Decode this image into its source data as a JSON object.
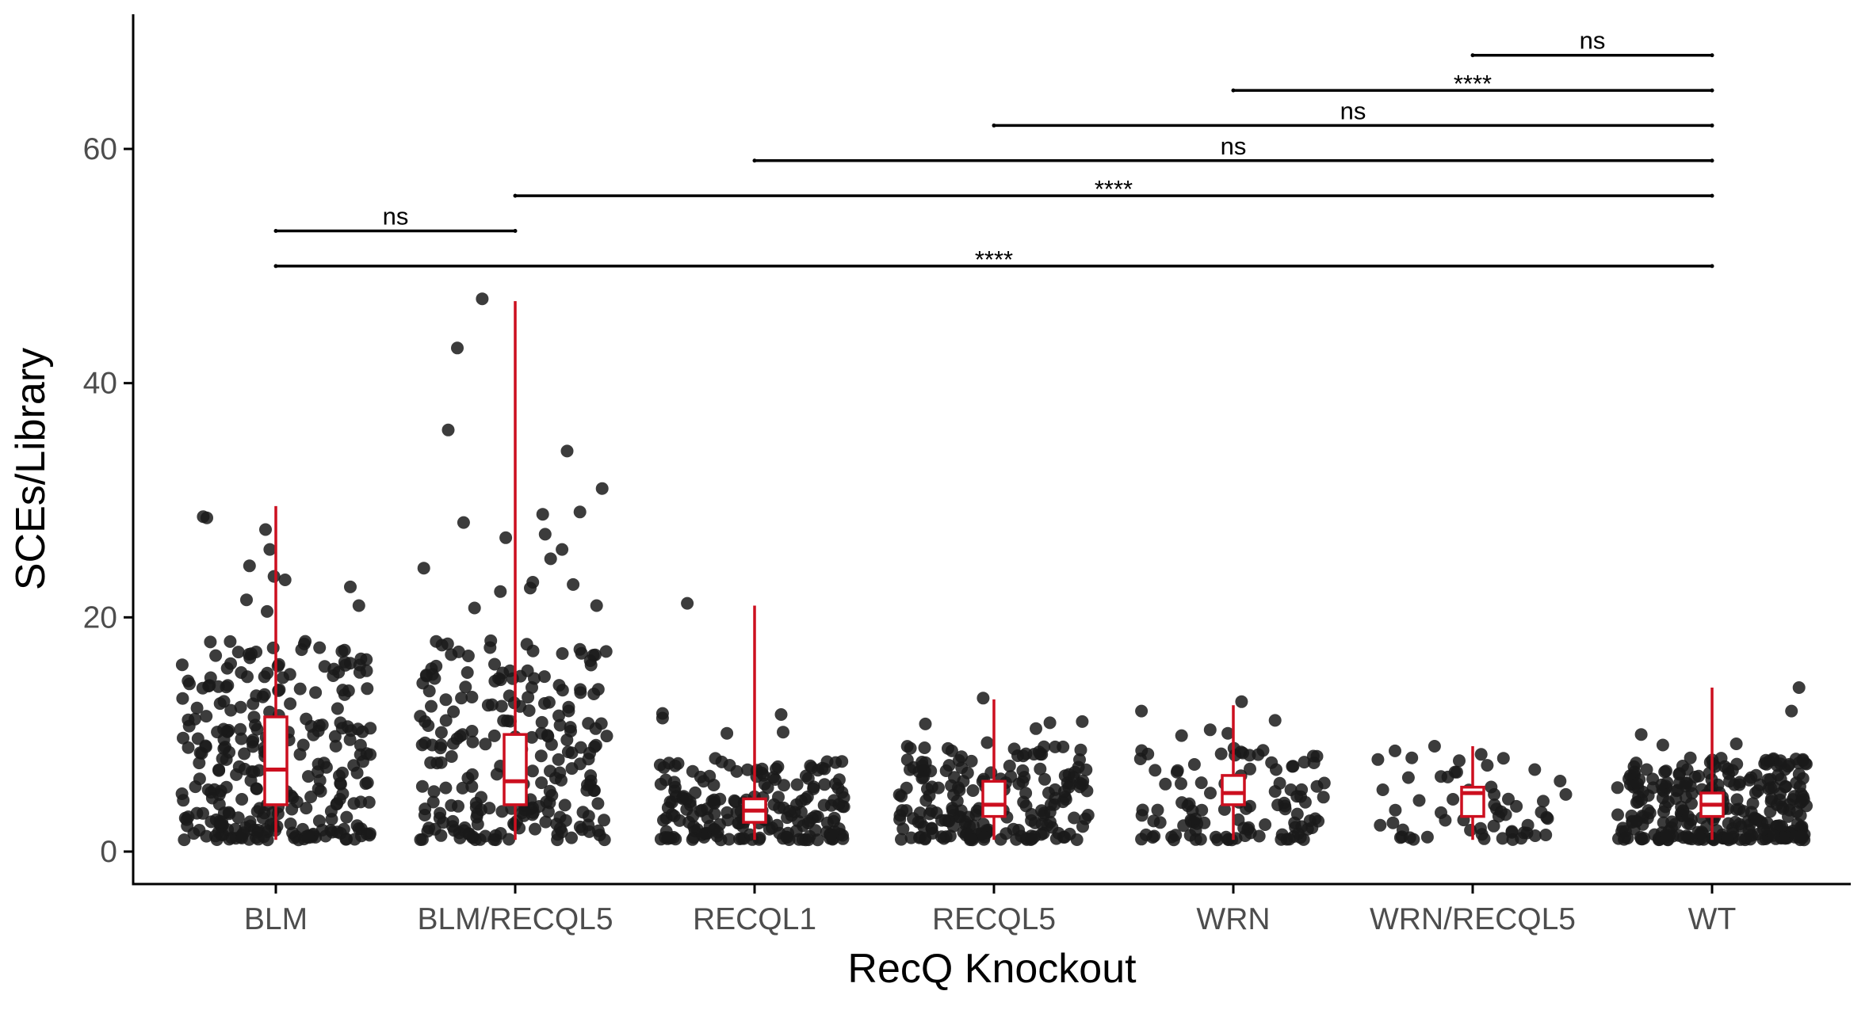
{
  "chart_data": {
    "type": "scatter",
    "subtype": "jitter-with-boxplot",
    "title": "",
    "xlabel": "RecQ Knockout",
    "ylabel": "SCEs/Library",
    "categories": [
      "BLM",
      "BLM/RECQL5",
      "RECQL1",
      "RECQL5",
      "WRN",
      "WRN/RECQL5",
      "WT"
    ],
    "yticks": [
      0,
      20,
      40,
      60
    ],
    "ylim": [
      -3,
      71
    ],
    "grid": false,
    "legend": "none",
    "colors": {
      "points": "#1a1a1a",
      "box": "#cc0f1f",
      "axis": "#000000"
    },
    "boxplots": [
      {
        "group": "BLM",
        "min": 1,
        "q1": 4,
        "median": 7,
        "q3": 11.5,
        "max": 29.5
      },
      {
        "group": "BLM/RECQL5",
        "min": 1,
        "q1": 4,
        "median": 6,
        "q3": 10,
        "max": 47
      },
      {
        "group": "RECQL1",
        "min": 1,
        "q1": 2.5,
        "median": 3.5,
        "q3": 4.5,
        "max": 21
      },
      {
        "group": "RECQL5",
        "min": 1,
        "q1": 3,
        "median": 4,
        "q3": 6,
        "max": 13
      },
      {
        "group": "WRN",
        "min": 1,
        "q1": 4,
        "median": 5,
        "q3": 6.5,
        "max": 12.5
      },
      {
        "group": "WRN/RECQL5",
        "min": 1,
        "q1": 3,
        "median": 5,
        "q3": 5.5,
        "max": 9
      },
      {
        "group": "WT",
        "min": 1,
        "q1": 3,
        "median": 4,
        "q3": 5,
        "max": 14
      }
    ],
    "points": [
      {
        "group": "BLM",
        "n": 300,
        "typical": [
          1,
          18
        ],
        "max_shown": 29.5,
        "notable": [
          27.5,
          28.5,
          28.6,
          25.8,
          24.4,
          23.5,
          23.2,
          22.6,
          21.5,
          21,
          20.5
        ]
      },
      {
        "group": "BLM/RECQL5",
        "n": 250,
        "typical": [
          1,
          18
        ],
        "max_shown": 47.2,
        "notable": [
          47.2,
          43,
          36,
          34.2,
          31,
          29,
          28.8,
          28.1,
          27.1,
          26.8,
          25.8,
          25,
          24.2,
          23,
          22.8,
          22.5,
          22.2,
          21,
          20.8
        ]
      },
      {
        "group": "RECQL1",
        "n": 200,
        "typical": [
          1,
          8
        ],
        "max_shown": 21.2,
        "notable": [
          21.2,
          11.8,
          11.7,
          11.4,
          10.2,
          10.1
        ]
      },
      {
        "group": "RECQL5",
        "n": 200,
        "typical": [
          1,
          9
        ],
        "max_shown": 13.1,
        "notable": [
          13.1,
          11.1,
          11,
          10.9,
          10.5,
          9.3
        ]
      },
      {
        "group": "WRN",
        "n": 120,
        "typical": [
          1,
          9
        ],
        "max_shown": 12.8,
        "notable": [
          12.8,
          12,
          11.2,
          10.4,
          10.1,
          9.9
        ]
      },
      {
        "group": "WRN/RECQL5",
        "n": 60,
        "typical": [
          1,
          8
        ],
        "max_shown": 9,
        "notable": [
          9,
          8.6,
          8.3,
          8
        ]
      },
      {
        "group": "WT",
        "n": 300,
        "typical": [
          1,
          8
        ],
        "max_shown": 14,
        "notable": [
          14,
          12,
          10,
          9.2,
          9.1
        ]
      }
    ],
    "comparisons": [
      {
        "from": "BLM",
        "to": "WT",
        "y": 50,
        "label": "****"
      },
      {
        "from": "BLM",
        "to": "BLM/RECQL5",
        "y": 53,
        "label": "ns"
      },
      {
        "from": "BLM/RECQL5",
        "to": "WT",
        "y": 56,
        "label": "****"
      },
      {
        "from": "RECQL1",
        "to": "WT",
        "y": 59,
        "label": "ns"
      },
      {
        "from": "RECQL5",
        "to": "WT",
        "y": 62,
        "label": "ns"
      },
      {
        "from": "WRN",
        "to": "WT",
        "y": 65,
        "label": "****"
      },
      {
        "from": "WRN/RECQL5",
        "to": "WT",
        "y": 68,
        "label": "ns"
      }
    ]
  }
}
